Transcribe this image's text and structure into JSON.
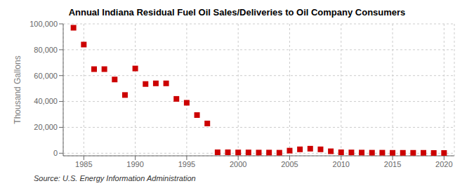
{
  "chart_data": {
    "type": "scatter",
    "title": "Annual Indiana Residual Fuel Oil Sales/Deliveries to Oil Company Consumers",
    "y_label": "Thousand Gallons",
    "annotations": [
      "Source: U.S. Energy Information Administration"
    ],
    "color": "#cc0000",
    "marker": "square",
    "grid": true,
    "xlim": [
      1983,
      2021
    ],
    "xticks": [
      1985,
      1990,
      1995,
      2000,
      2005,
      2010,
      2015,
      2020
    ],
    "ylim": [
      -2000,
      100000
    ],
    "yticks": [
      0,
      {
        "value": 20000,
        "label": "20,000"
      },
      {
        "value": 40000,
        "label": "40,000"
      },
      {
        "value": 60000,
        "label": "60,000"
      },
      {
        "value": 80000,
        "label": "80,000"
      },
      {
        "value": 100000,
        "label": "100,000"
      }
    ],
    "x": [
      1984,
      1985,
      1986,
      1987,
      1988,
      1989,
      1990,
      1991,
      1992,
      1993,
      1994,
      1995,
      1996,
      1997,
      1998,
      1999,
      2000,
      2001,
      2002,
      2003,
      2004,
      2005,
      2006,
      2007,
      2008,
      2009,
      2010,
      2011,
      2012,
      2013,
      2014,
      2015,
      2016,
      2017,
      2018,
      2019,
      2020
    ],
    "values": [
      97000,
      84000,
      65000,
      65000,
      57000,
      45000,
      65500,
      53500,
      54000,
      54000,
      42000,
      39000,
      29500,
      23000,
      700,
      700,
      600,
      600,
      500,
      500,
      400,
      2000,
      3000,
      3500,
      3000,
      1500,
      700,
      600,
      500,
      400,
      400,
      300,
      300,
      300,
      300,
      200,
      200
    ]
  }
}
